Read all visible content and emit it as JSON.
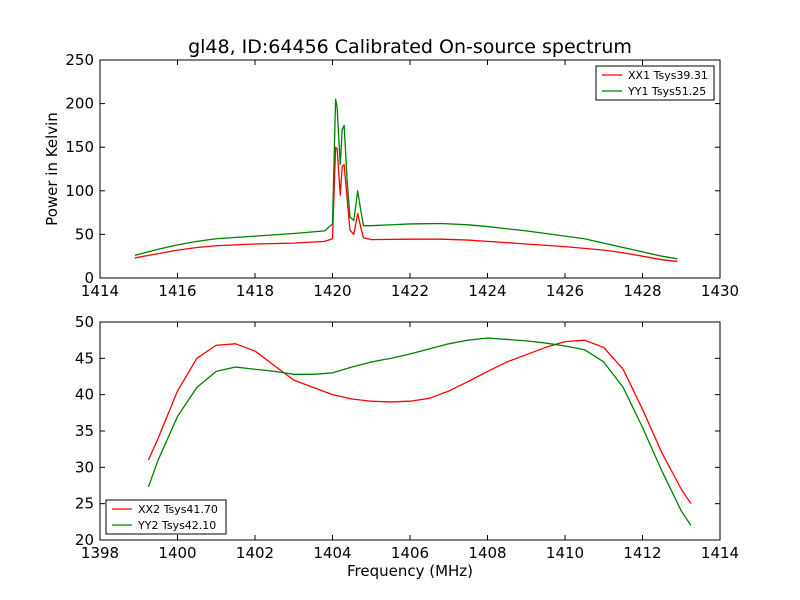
{
  "figure": {
    "title": "gl48, ID:64456 Calibrated On-source spectrum"
  },
  "chart_data": [
    {
      "type": "line",
      "xlabel": "",
      "ylabel": "Power in Kelvin",
      "xlim": [
        1414,
        1430
      ],
      "ylim": [
        0,
        250
      ],
      "xticks": [
        1414,
        1416,
        1418,
        1420,
        1422,
        1424,
        1426,
        1428,
        1430
      ],
      "yticks": [
        0,
        50,
        100,
        150,
        200,
        250
      ],
      "grid": false,
      "legend_position": "top-right",
      "series": [
        {
          "name": "XX1 Tsys39.31",
          "color": "#ff0000",
          "x": [
            1414.9,
            1415.5,
            1416,
            1416.5,
            1417,
            1418,
            1419,
            1419.8,
            1420.0,
            1420.08,
            1420.12,
            1420.2,
            1420.25,
            1420.3,
            1420.38,
            1420.45,
            1420.55,
            1420.65,
            1420.72,
            1420.8,
            1421,
            1422,
            1422.8,
            1423.5,
            1424,
            1425,
            1426,
            1426.5,
            1427,
            1427.5,
            1428,
            1428.5,
            1428.9
          ],
          "y": [
            23,
            28,
            32,
            35,
            37,
            39,
            40,
            42,
            45,
            150,
            148,
            95,
            128,
            130,
            90,
            55,
            50,
            74,
            60,
            46,
            44,
            44.5,
            44.5,
            43.5,
            42,
            39,
            36,
            34,
            32,
            29,
            25,
            21,
            19
          ]
        },
        {
          "name": "YY1 Tsys51.25",
          "color": "#008000",
          "x": [
            1414.9,
            1415.5,
            1416,
            1416.5,
            1417,
            1418,
            1419,
            1419.8,
            1420.0,
            1420.08,
            1420.12,
            1420.2,
            1420.25,
            1420.3,
            1420.38,
            1420.45,
            1420.55,
            1420.65,
            1420.72,
            1420.8,
            1421,
            1422,
            1422.8,
            1423.5,
            1424,
            1425,
            1426,
            1426.5,
            1427,
            1427.5,
            1428,
            1428.5,
            1428.9
          ],
          "y": [
            26,
            33,
            38,
            42,
            45,
            48,
            51,
            54,
            62,
            205,
            195,
            130,
            170,
            175,
            110,
            70,
            66,
            100,
            80,
            60,
            60,
            62,
            62.5,
            61,
            59,
            54,
            48,
            45,
            40,
            35,
            30,
            25,
            22
          ]
        }
      ]
    },
    {
      "type": "line",
      "xlabel": "Frequency (MHz)",
      "ylabel": "",
      "xlim": [
        1398,
        1414
      ],
      "ylim": [
        20,
        50
      ],
      "xticks": [
        1398,
        1400,
        1402,
        1404,
        1406,
        1408,
        1410,
        1412,
        1414
      ],
      "yticks": [
        20,
        25,
        30,
        35,
        40,
        45,
        50
      ],
      "grid": false,
      "legend_position": "bottom-left",
      "series": [
        {
          "name": "XX2 Tsys41.70",
          "color": "#ff0000",
          "x": [
            1399.25,
            1399.5,
            1400,
            1400.5,
            1401,
            1401.5,
            1402,
            1402.5,
            1403,
            1403.5,
            1404,
            1404.5,
            1405,
            1405.5,
            1406,
            1406.5,
            1407,
            1407.5,
            1408,
            1408.5,
            1409,
            1409.5,
            1410,
            1410.5,
            1411,
            1411.5,
            1412,
            1412.5,
            1413,
            1413.25
          ],
          "y": [
            31,
            34,
            40.5,
            45,
            46.8,
            47,
            46,
            44,
            42,
            41,
            40,
            39.4,
            39.1,
            39,
            39.1,
            39.5,
            40.5,
            41.8,
            43.2,
            44.5,
            45.5,
            46.5,
            47.3,
            47.5,
            46.5,
            43.5,
            38,
            32,
            27,
            25
          ]
        },
        {
          "name": "YY2 Tsys42.10",
          "color": "#008000",
          "x": [
            1399.25,
            1399.5,
            1400,
            1400.5,
            1401,
            1401.5,
            1402,
            1402.5,
            1403,
            1403.5,
            1404,
            1404.5,
            1405,
            1405.5,
            1406,
            1406.5,
            1407,
            1407.5,
            1408,
            1408.5,
            1409,
            1409.5,
            1410,
            1410.5,
            1411,
            1411.5,
            1412,
            1412.5,
            1413,
            1413.25
          ],
          "y": [
            27.3,
            31,
            37,
            41,
            43.2,
            43.8,
            43.5,
            43.2,
            42.8,
            42.8,
            43,
            43.8,
            44.5,
            45,
            45.6,
            46.3,
            47,
            47.5,
            47.8,
            47.6,
            47.4,
            47.1,
            46.7,
            46.2,
            44.5,
            41,
            35.5,
            29.5,
            24,
            22
          ]
        }
      ]
    }
  ]
}
